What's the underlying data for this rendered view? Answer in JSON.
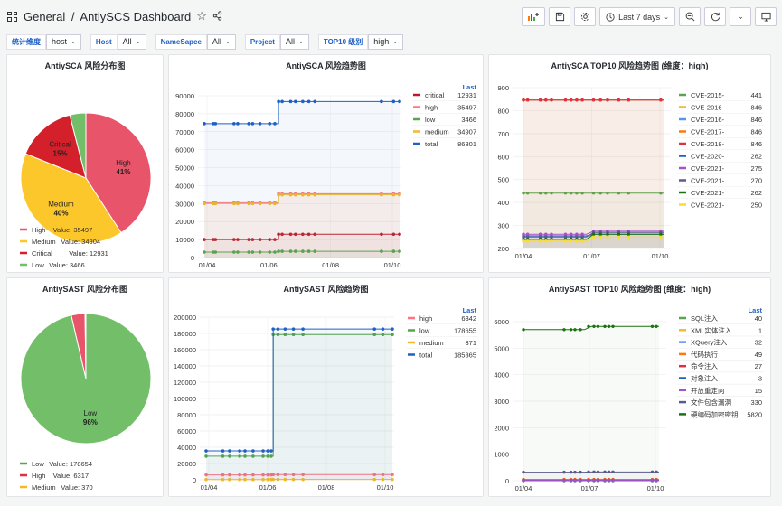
{
  "header": {
    "crumb_root": "General",
    "crumb_sep": "/",
    "title": "AntiySCS Dashboard",
    "time_range": "Last 7 days"
  },
  "variables": [
    {
      "label": "统计维度",
      "value": "host"
    },
    {
      "label": "Host",
      "value": "All"
    },
    {
      "label": "NameSapce",
      "value": "All"
    },
    {
      "label": "Project",
      "value": "All"
    },
    {
      "label": "TOP10 级别",
      "value": "high"
    }
  ],
  "panels": {
    "sca_pie": {
      "title": "AntiySCA 风险分布图",
      "chart_data": {
        "type": "pie",
        "slices": [
          {
            "name": "High",
            "value": 35497,
            "pct": "41%",
            "color": "#e8546a"
          },
          {
            "name": "Medium",
            "value": 34904,
            "pct": "40%",
            "color": "#fbc72a"
          },
          {
            "name": "Critical",
            "value": 12931,
            "pct": "15%",
            "color": "#d4202a"
          },
          {
            "name": "Low",
            "value": 3466,
            "pct": "",
            "color": "#73bf69"
          }
        ],
        "legend": [
          {
            "name": "High",
            "text": "Value: 35497",
            "color": "#e8546a"
          },
          {
            "name": "Medium",
            "text": "Value: 34904",
            "color": "#fbc72a"
          },
          {
            "name": "Critical",
            "text": "Value: 12931",
            "color": "#d4202a"
          },
          {
            "name": "Low",
            "text": "Value: 3466",
            "color": "#73bf69"
          }
        ]
      }
    },
    "sca_trend": {
      "title": "AntiySCA 风险趋势图",
      "legend_header": "Last",
      "chart_data": {
        "type": "line",
        "x_ticks": [
          "01/04",
          "01/06",
          "01/08",
          "01/10"
        ],
        "ylim": [
          0,
          90000
        ],
        "y_ticks": [
          0,
          10000,
          20000,
          30000,
          40000,
          50000,
          60000,
          70000,
          80000,
          90000
        ],
        "x": [
          0,
          1,
          1.2,
          2,
          2.2,
          3,
          3.1,
          3.3,
          3.45,
          3.55,
          4,
          4.15,
          4.3,
          5.6,
          5.75,
          5.85,
          7.2,
          7.35,
          7.5
        ],
        "step_index": 10,
        "series": [
          {
            "name": "critical",
            "last": "12931",
            "color": "#c4162a",
            "before": 10000,
            "after": 12931
          },
          {
            "name": "high",
            "last": "35497",
            "color": "#ff7383",
            "before": 30500,
            "after": 35497
          },
          {
            "name": "low",
            "last": "3466",
            "color": "#56a64b",
            "before": 3000,
            "after": 3466
          },
          {
            "name": "medium",
            "last": "34907",
            "color": "#f2b929",
            "before": 30000,
            "after": 34907
          },
          {
            "name": "total",
            "last": "86801",
            "color": "#1f60c4",
            "before": 74500,
            "after": 86801
          }
        ]
      }
    },
    "sca_top10": {
      "title": "AntiySCA TOP10 风险趋势图 (维度：high)",
      "legend_header": "",
      "chart_data": {
        "type": "line",
        "x_ticks": [
          "01/04",
          "01/07",
          "01/10"
        ],
        "ylim": [
          200,
          900
        ],
        "y_ticks": [
          200,
          300,
          400,
          500,
          600,
          700,
          800,
          900
        ],
        "series": [
          {
            "name": "CVE-2015-",
            "last": "441",
            "color": "#56a64b"
          },
          {
            "name": "CVE-2016-",
            "last": "846",
            "color": "#f2b929"
          },
          {
            "name": "CVE-2016-",
            "last": "846",
            "color": "#5794f2"
          },
          {
            "name": "CVE-2017-",
            "last": "846",
            "color": "#ff780a"
          },
          {
            "name": "CVE-2018-",
            "last": "846",
            "color": "#e02f44"
          },
          {
            "name": "CVE-2020-",
            "last": "262",
            "color": "#1f60c4"
          },
          {
            "name": "CVE-2021-",
            "last": "275",
            "color": "#a352cc"
          },
          {
            "name": "CVE-2021-",
            "last": "270",
            "color": "#5b5b8f"
          },
          {
            "name": "CVE-2021-",
            "last": "262",
            "color": "#19730e"
          },
          {
            "name": "CVE-2021-",
            "last": "250",
            "color": "#fade2a"
          }
        ]
      }
    },
    "sast_pie": {
      "title": "AntiySAST 风险分布图",
      "chart_data": {
        "type": "pie",
        "slices": [
          {
            "name": "Low",
            "value": 178654,
            "pct": "96%",
            "color": "#73bf69"
          },
          {
            "name": "High",
            "value": 6317,
            "pct": "",
            "color": "#e8546a"
          },
          {
            "name": "Medium",
            "value": 370,
            "pct": "",
            "color": "#fbc72a"
          }
        ],
        "legend": [
          {
            "name": "Low",
            "text": "Value: 178654",
            "color": "#56a64b"
          },
          {
            "name": "High",
            "text": "Value: 6317",
            "color": "#e02f44"
          },
          {
            "name": "Medium",
            "text": "Value: 370",
            "color": "#f2b929"
          }
        ]
      }
    },
    "sast_trend": {
      "title": "AntiySAST 风险趋势图",
      "legend_header": "Last",
      "chart_data": {
        "type": "line",
        "x_ticks": [
          "01/04",
          "01/06",
          "01/08",
          "01/10"
        ],
        "ylim": [
          0,
          200000
        ],
        "y_ticks": [
          0,
          20000,
          40000,
          60000,
          80000,
          100000,
          120000,
          140000,
          160000,
          180000,
          200000
        ],
        "series": [
          {
            "name": "high",
            "last": "6342",
            "color": "#ff7383",
            "before": 6000,
            "after": 6342
          },
          {
            "name": "low",
            "last": "178655",
            "color": "#56a64b",
            "before": 29000,
            "after": 178655
          },
          {
            "name": "medium",
            "last": "371",
            "color": "#f2b929",
            "before": 300,
            "after": 371
          },
          {
            "name": "total",
            "last": "185365",
            "color": "#1f60c4",
            "before": 35500,
            "after": 185365
          }
        ]
      }
    },
    "sast_top10": {
      "title": "AntiySAST TOP10 风险趋势图 (维度：high)",
      "legend_header": "Last",
      "chart_data": {
        "type": "line",
        "x_ticks": [
          "01/04",
          "01/07",
          "01/10"
        ],
        "ylim": [
          0,
          6000
        ],
        "y_ticks": [
          0,
          1000,
          2000,
          3000,
          4000,
          5000,
          6000
        ],
        "series": [
          {
            "name": "SQL注入",
            "last": "40",
            "color": "#56a64b"
          },
          {
            "name": "XML实体注入",
            "last": "1",
            "color": "#f2b929"
          },
          {
            "name": "XQuery注入",
            "last": "32",
            "color": "#5794f2"
          },
          {
            "name": "代码执行",
            "last": "49",
            "color": "#ff780a"
          },
          {
            "name": "命令注入",
            "last": "27",
            "color": "#e02f44"
          },
          {
            "name": "对象注入",
            "last": "3",
            "color": "#1f60c4"
          },
          {
            "name": "开放重定向",
            "last": "15",
            "color": "#a352cc"
          },
          {
            "name": "文件包含漏洞",
            "last": "330",
            "color": "#5b5b8f"
          },
          {
            "name": "硬编码加密密钥",
            "last": "5820",
            "color": "#19730e"
          }
        ]
      }
    }
  }
}
